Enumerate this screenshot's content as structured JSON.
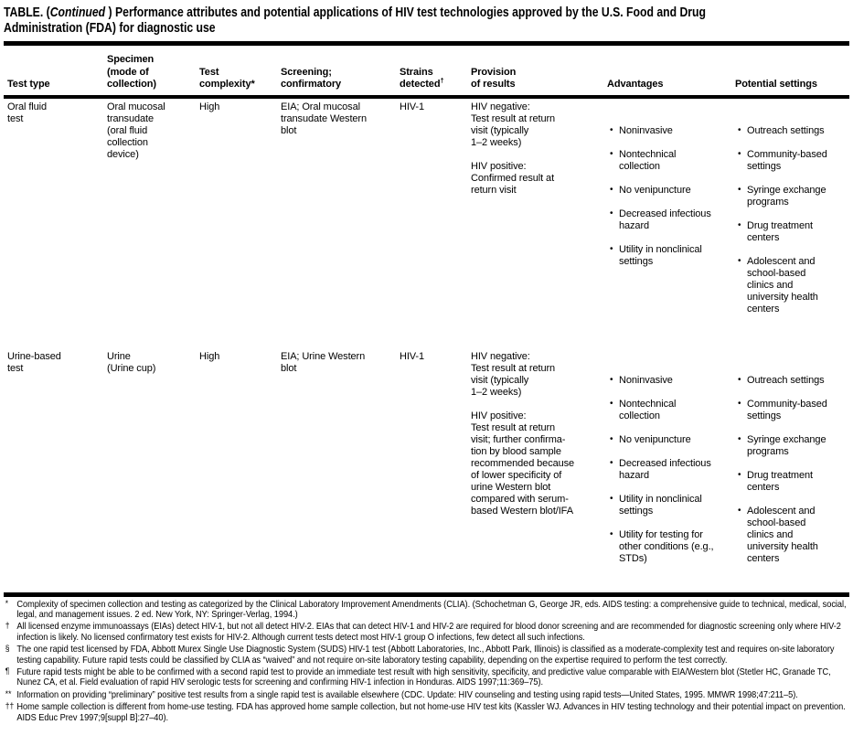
{
  "title": {
    "prefix": "TABLE. (",
    "italic": "Continued",
    "suffix": " ) Performance attributes and potential applications of HIV test technologies approved by the U.S. Food and Drug\nAdministration (FDA) for diagnostic use"
  },
  "table": {
    "headers": [
      {
        "text": "Test type"
      },
      {
        "text": "Specimen\n(mode of\ncollection)"
      },
      {
        "text": "Test\ncomplexity*"
      },
      {
        "text": "Screening;\nconfirmatory"
      },
      {
        "text": "Strains\ndetected",
        "sup": "†"
      },
      {
        "text": "Provision\nof results"
      },
      {
        "text": "Advantages"
      },
      {
        "text": "Potential settings"
      }
    ],
    "rows": [
      {
        "test_type": "Oral fluid\ntest",
        "specimen": "Oral mucosal\ntransudate\n(oral fluid\ncollection\ndevice)",
        "complexity": "High",
        "screening": "EIA; Oral mucosal\ntransudate Western\nblot",
        "strains": "HIV-1",
        "provision": "HIV negative:\nTest result at return\nvisit (typically\n1–2 weeks)\n\nHIV positive:\nConfirmed result at\nreturn visit",
        "advantages": [
          "Noninvasive",
          "Nontechnical\ncollection",
          "No venipuncture",
          "Decreased infectious\nhazard",
          "Utility in nonclinical\nsettings"
        ],
        "settings": [
          "Outreach settings",
          "Community-based\nsettings",
          "Syringe exchange\nprograms",
          "Drug treatment\ncenters",
          "Adolescent and\nschool-based\nclinics and\nuniversity health\ncenters"
        ]
      },
      {
        "test_type": "Urine-based\ntest",
        "specimen": "Urine\n(Urine cup)",
        "complexity": "High",
        "screening": "EIA; Urine Western\nblot",
        "strains": "HIV-1",
        "provision": "HIV negative:\nTest result at return\nvisit (typically\n1–2 weeks)\n\nHIV positive:\nTest result at return\nvisit; further confirma-\ntion by blood sample\nrecommended because\nof lower specificity of\nurine Western blot\ncompared with serum-\nbased Western blot/IFA",
        "advantages": [
          "Noninvasive",
          "Nontechnical\ncollection",
          "No venipuncture",
          "Decreased infectious\nhazard",
          "Utility in nonclinical\nsettings",
          "Utility for testing for\nother conditions (e.g.,\nSTDs)"
        ],
        "settings": [
          "Outreach settings",
          "Community-based\nsettings",
          "Syringe exchange\nprograms",
          "Drug treatment\ncenters",
          "Adolescent and\nschool-based\nclinics and\nuniversity health\ncenters"
        ]
      }
    ]
  },
  "footnotes": [
    {
      "symbol": "*",
      "text": "Complexity of specimen collection and testing as categorized by the Clinical Laboratory Improvement Amendments (CLIA). (Schochetman G, George JR, eds. AIDS testing: a comprehensive guide to technical, medical, social, legal, and management issues. 2 ed. New York, NY: Springer-Verlag, 1994.)"
    },
    {
      "symbol": "†",
      "text": "All licensed enzyme immunoassays (EIAs) detect HIV-1, but not all detect HIV-2. EIAs that can detect HIV-1 and HIV-2 are required for blood donor screening and are recommended for diagnostic screening only where HIV-2 infection is likely. No licensed confirmatory test exists for HIV-2. Although current tests detect most HIV-1 group O infections, few detect all such infections."
    },
    {
      "symbol": "§",
      "text": "The one rapid test licensed by FDA, Abbott Murex Single Use Diagnostic System (SUDS) HIV-1 test (Abbott Laboratories, Inc., Abbott Park, Illinois) is classified as a moderate-complexity test and requires on-site laboratory testing capability. Future rapid tests could be classified by CLIA as “waived” and not require on-site laboratory testing capability, depending on the expertise required to perform the test correctly."
    },
    {
      "symbol": "¶",
      "text": "Future rapid tests might be able to be confirmed with a second rapid test to provide an immediate test result with high sensitivity, specificity, and predictive value comparable with EIA/Western blot (Stetler HC, Granade TC, Nunez CA, et al. Field evaluation of rapid HIV serologic tests for screening and confirming HIV-1 infection in Honduras. AIDS 1997;11:369–75)."
    },
    {
      "symbol": "**",
      "text": "Information on providing “preliminary” positive test results from a single rapid test is available elsewhere (CDC. Update: HIV counseling and testing using rapid tests—United States, 1995. MMWR 1998;47:211–5)."
    },
    {
      "symbol": "††",
      "text": "Home sample collection is different from home-use testing. FDA has approved home sample collection, but not home-use HIV test kits (Kassler WJ. Advances in HIV testing technology and their potential impact on prevention. AIDS Educ Prev 1997;9[suppl B]:27–40)."
    }
  ]
}
